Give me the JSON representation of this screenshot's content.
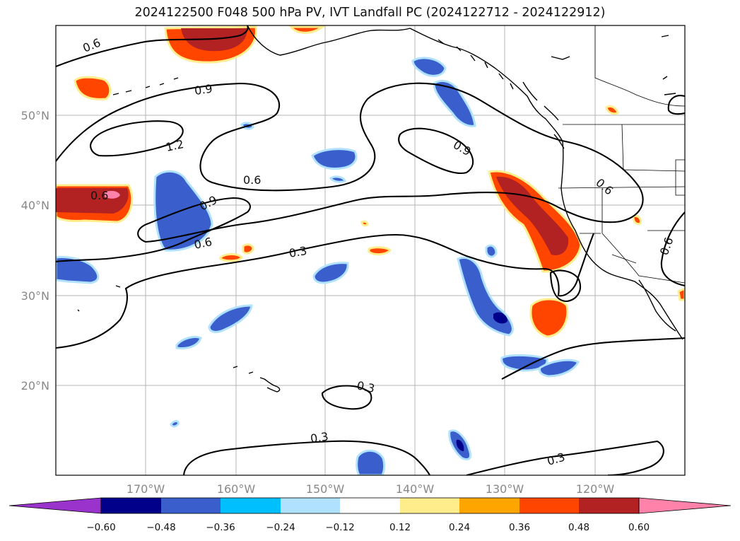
{
  "title": "2024122500 F048 500 hPa PV, IVT Landfall PC (2024122712 - 2024122912)",
  "lat_labels": [
    "50°N",
    "40°N",
    "30°N",
    "20°N"
  ],
  "lon_labels": [
    "170°W",
    "160°W",
    "150°W",
    "140°W",
    "130°W",
    "120°W"
  ],
  "contour_labels": [
    "0.6",
    "0.9",
    "1.2",
    "0.6",
    "0.9",
    "0.6",
    "0.9",
    "0.6",
    "0.3",
    "0.6",
    "0.6",
    "0.3",
    "0.3",
    "0.3"
  ],
  "colorbar": {
    "ticks": [
      "−0.60",
      "−0.48",
      "−0.36",
      "−0.24",
      "−0.12",
      "0.12",
      "0.24",
      "0.36",
      "0.48",
      "0.60"
    ],
    "colors": [
      "#9933cc",
      "#00008b",
      "#3a5fcd",
      "#00bfff",
      "#b0e2ff",
      "#ffffff",
      "#ffec8b",
      "#ffa500",
      "#ff4500",
      "#b22222",
      "#ff82ab"
    ]
  }
}
